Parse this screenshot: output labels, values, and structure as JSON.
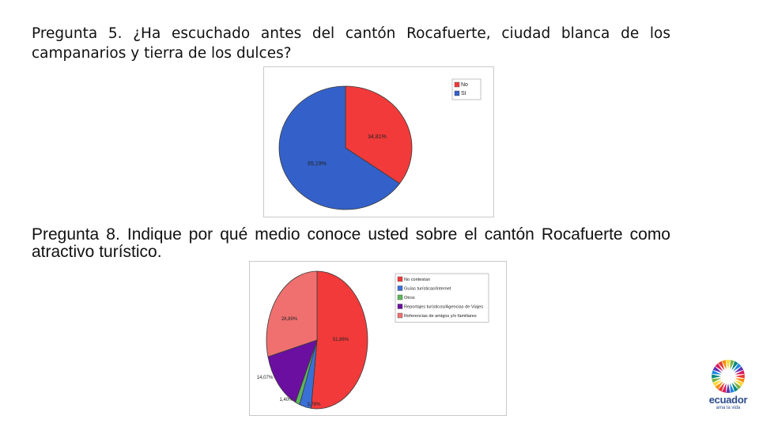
{
  "slide": {
    "question5": "Pregunta 5. ¿Ha escuchado antes del cantón Rocafuerte, ciudad blanca de los campanarios y tierra de los dulces?",
    "question8": "Pregunta 8. Indique por qué medio conoce usted sobre el cantón Rocafuerte como atractivo turístico."
  },
  "logo": {
    "word": "ecuador",
    "tagline": "ama la vida",
    "colors": [
      "#e53935",
      "#fb8c00",
      "#fdd835",
      "#7cb342",
      "#00897b",
      "#1e88e5",
      "#5e35b1",
      "#d81b60"
    ]
  },
  "chart_data": [
    {
      "type": "pie",
      "title": "",
      "legend_position": "top-right",
      "slices": [
        {
          "label": "No",
          "value": 34.81,
          "value_label": "34,81%",
          "color": "#f23a3a"
        },
        {
          "label": "SI",
          "value": 65.19,
          "value_label": "65,19%",
          "color": "#3461c9"
        }
      ]
    },
    {
      "type": "pie",
      "title": "",
      "legend_position": "top-right",
      "slices": [
        {
          "label": "No contestan",
          "value": 51.86,
          "value_label": "51,86%",
          "color": "#f23a3a"
        },
        {
          "label": "Guías turísticas/Internet",
          "value": 3.76,
          "value_label": "3,76%",
          "color": "#3a6fd6"
        },
        {
          "label": "Otros",
          "value": 1.4,
          "value_label": "1,40%",
          "color": "#5cb85c"
        },
        {
          "label": "Reportajes turísticos/Agencias de Viajes",
          "value": 14.07,
          "value_label": "14,07%",
          "color": "#6b0fa0"
        },
        {
          "label": "Referencias de amigos y/o familiares",
          "value": 28.89,
          "value_label": "28,89%",
          "color": "#f07070"
        }
      ]
    }
  ]
}
